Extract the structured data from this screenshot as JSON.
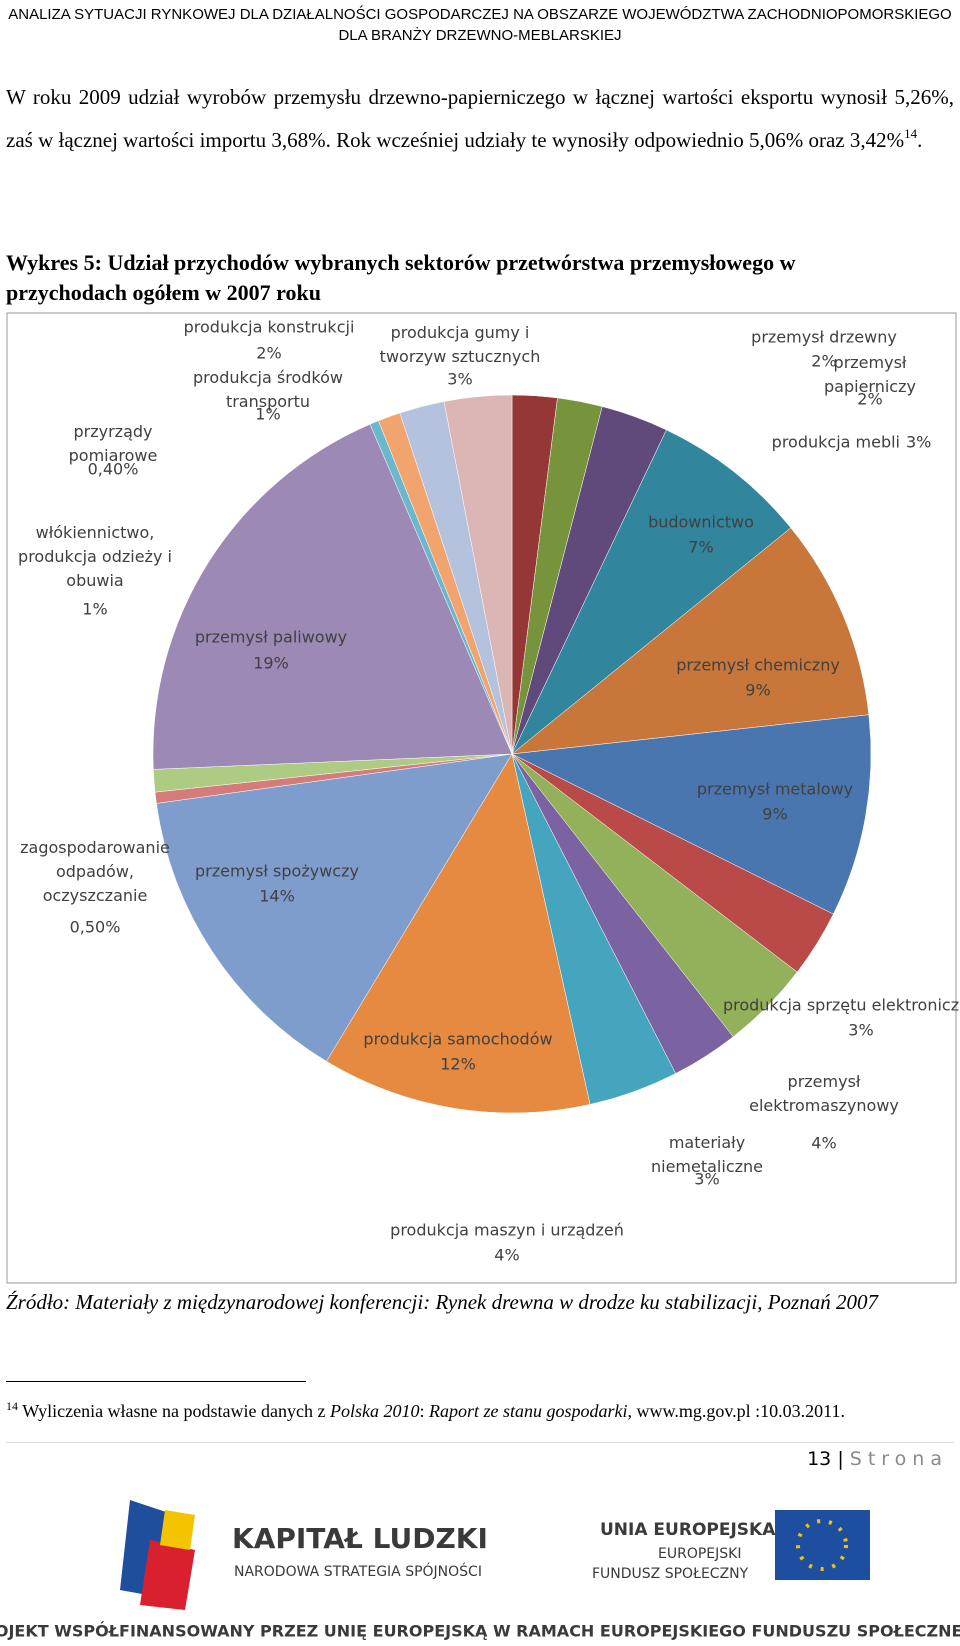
{
  "header": {
    "line1": "ANALIZA SYTUACJI RYNKOWEJ DLA DZIAŁALNOŚCI GOSPODARCZEJ NA OBSZARZE WOJEWÓDZTWA ZACHODNIOPOMORSKIEGO",
    "line2": "DLA BRANŻY DRZEWNO-MEBLARSKIEJ"
  },
  "paragraph": {
    "text": "W roku 2009 udział wyrobów przemysłu drzewno-papierniczego w łącznej wartości eksportu wynosił 5,26%, zaś w łącznej wartości importu 3,68%. Rok wcześniej udziały te wynosiły odpowiednio 5,06% oraz 3,42%",
    "footnote_ref": "14",
    "end": "."
  },
  "chart_data": {
    "type": "pie",
    "title": "Wykres 5: Udział przychodów wybranych sektorów przetwórstwa przemysłowego w przychodach ogółem w 2007 roku",
    "categories": [
      "przemysł drzewny",
      "przemysł papierniczy",
      "produkcja mebli",
      "budownictwo",
      "przemysł chemiczny",
      "przemysł metalowy",
      "produkcja sprzętu elektronicznego",
      "przemysł elektromaszynowy",
      "materiały niemetaliczne",
      "produkcja maszyn i urządzeń",
      "produkcja samochodów",
      "przemysł spożywczy",
      "zagospodarowanie odpadów, oczyszczanie",
      "włókiennictwo, produkcja odzieży i obuwia",
      "przemysł paliwowy",
      "przyrządy pomiarowe",
      "produkcja środków transportu",
      "produkcja konstrukcji",
      "produkcja gumy i tworzyw sztucznych"
    ],
    "values": [
      2,
      2,
      3,
      7,
      9,
      9,
      3,
      4,
      3,
      4,
      12,
      14,
      0.5,
      1,
      19,
      0.4,
      1,
      2,
      3
    ],
    "value_labels": [
      "2%",
      "2%",
      "3%",
      "7%",
      "9%",
      "9%",
      "3%",
      "4%",
      "3%",
      "4%",
      "12%",
      "14%",
      "0,50%",
      "1%",
      "19%",
      "0,40%",
      "1%",
      "2%",
      "3%"
    ],
    "colors": [
      "#953735",
      "#77933c",
      "#604a7b",
      "#31859c",
      "#c8763a",
      "#4a76b0",
      "#b94a48",
      "#93b15a",
      "#7b62a0",
      "#45a5be",
      "#e68a41",
      "#7f9dcc",
      "#d47c7a",
      "#aecb84",
      "#9c89b5",
      "#6bb8cc",
      "#f2a46e",
      "#b4c2de",
      "#dcb5b5"
    ]
  },
  "source": "Źródło: Materiały z międzynarodowej konferencji: Rynek drewna w drodze ku stabilizacji, Poznań 2007",
  "footnote": {
    "number": "14",
    "text": "Wyliczenia własne na podstawie danych z ",
    "italic1": "Polska 2010",
    "sep": ": ",
    "italic2": "Raport ze stanu gospodarki",
    "end": ", www.mg.gov.pl :10.03.2011."
  },
  "page_number": {
    "number": "13",
    "separator": "|",
    "word": "Strona"
  },
  "logos": {
    "kl_title": "KAPITAŁ LUDZKI",
    "kl_sub": "NARODOWA STRATEGIA SPÓJNOŚCI",
    "eu_title": "UNIA EUROPEJSKA",
    "eu_line2": "EUROPEJSKI",
    "eu_line3": "FUNDUSZ SPOŁECZNY"
  },
  "bottom": "PROJEKT WSPÓŁFINANSOWANY PRZEZ UNIĘ EUROPEJSKĄ W RAMACH EUROPEJSKIEGO FUNDUSZU SPOŁECZNEGO"
}
